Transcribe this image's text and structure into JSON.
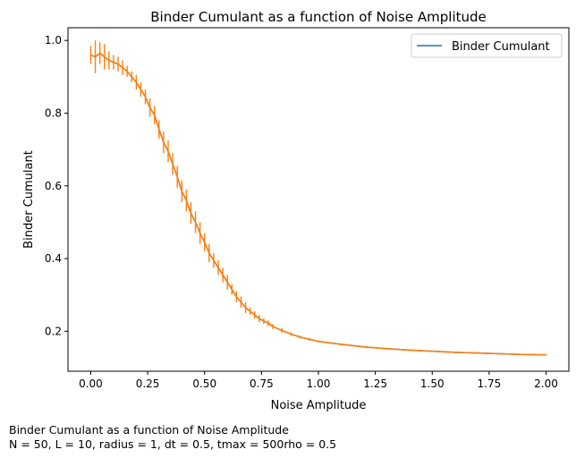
{
  "chart_data": {
    "type": "line",
    "title": "Binder Cumulant as a function of Noise Amplitude",
    "xlabel": "Noise Amplitude",
    "ylabel": "Binder Cumulant",
    "xlim": [
      -0.1,
      2.1
    ],
    "ylim": [
      0.09,
      1.035
    ],
    "grid": false,
    "legend_position": "top-right",
    "xticks": [
      0.0,
      0.25,
      0.5,
      0.75,
      1.0,
      1.25,
      1.5,
      1.75,
      2.0
    ],
    "xtick_labels": [
      "0.00",
      "0.25",
      "0.50",
      "0.75",
      "1.00",
      "1.25",
      "1.50",
      "1.75",
      "2.00"
    ],
    "yticks": [
      0.2,
      0.4,
      0.6,
      0.8,
      1.0
    ],
    "ytick_labels": [
      "0.2",
      "0.4",
      "0.6",
      "0.8",
      "1.0"
    ],
    "series": [
      {
        "name": "Binder Cumulant",
        "color": "#1f77b4",
        "errorbar_color": "#ff7f0e",
        "x": [
          0.0,
          0.02,
          0.04,
          0.06,
          0.08,
          0.1,
          0.12,
          0.14,
          0.16,
          0.18,
          0.2,
          0.22,
          0.24,
          0.26,
          0.28,
          0.3,
          0.32,
          0.34,
          0.36,
          0.38,
          0.4,
          0.42,
          0.44,
          0.46,
          0.48,
          0.5,
          0.52,
          0.54,
          0.56,
          0.58,
          0.6,
          0.62,
          0.64,
          0.66,
          0.68,
          0.7,
          0.72,
          0.74,
          0.76,
          0.78,
          0.8,
          0.84,
          0.88,
          0.92,
          0.96,
          1.0,
          1.1,
          1.2,
          1.3,
          1.4,
          1.5,
          1.6,
          1.7,
          1.8,
          1.9,
          2.0
        ],
        "y": [
          0.96,
          0.955,
          0.965,
          0.955,
          0.945,
          0.94,
          0.935,
          0.925,
          0.915,
          0.9,
          0.885,
          0.865,
          0.845,
          0.815,
          0.795,
          0.755,
          0.72,
          0.695,
          0.66,
          0.625,
          0.585,
          0.56,
          0.525,
          0.5,
          0.47,
          0.445,
          0.415,
          0.395,
          0.375,
          0.355,
          0.335,
          0.315,
          0.295,
          0.28,
          0.265,
          0.255,
          0.245,
          0.235,
          0.228,
          0.222,
          0.213,
          0.202,
          0.192,
          0.184,
          0.178,
          0.172,
          0.164,
          0.157,
          0.152,
          0.148,
          0.145,
          0.142,
          0.14,
          0.138,
          0.136,
          0.135
        ],
        "yerr": [
          0.025,
          0.045,
          0.03,
          0.035,
          0.025,
          0.02,
          0.02,
          0.02,
          0.015,
          0.015,
          0.02,
          0.02,
          0.02,
          0.025,
          0.025,
          0.025,
          0.03,
          0.03,
          0.03,
          0.03,
          0.03,
          0.03,
          0.03,
          0.03,
          0.03,
          0.025,
          0.025,
          0.02,
          0.02,
          0.02,
          0.02,
          0.015,
          0.015,
          0.015,
          0.015,
          0.01,
          0.01,
          0.01,
          0.008,
          0.008,
          0.007,
          0.006,
          0.005,
          0.004,
          0.004,
          0.003,
          0.003,
          0.002,
          0.002,
          0.002,
          0.002,
          0.002,
          0.002,
          0.002,
          0.002,
          0.002
        ]
      }
    ]
  },
  "caption": {
    "line1": "Binder Cumulant as a function of Noise Amplitude",
    "line2": "N = 50, L = 10, radius = 1, dt = 0.5, tmax = 500rho = 0.5"
  }
}
